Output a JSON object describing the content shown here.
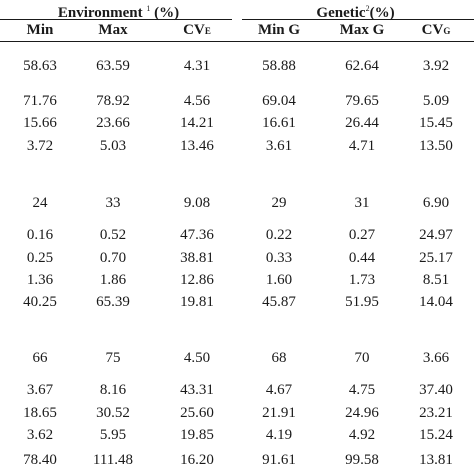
{
  "header": {
    "environment": {
      "label": "Environment",
      "note": "1",
      "suffix": "(%)"
    },
    "genetic": {
      "label": "Genetic",
      "note": "2",
      "suffix": "(%)"
    },
    "columns": [
      {
        "main": "Min",
        "sub": ""
      },
      {
        "main": "Max",
        "sub": ""
      },
      {
        "main": "CV",
        "sub": "E"
      },
      {
        "main": "Min G",
        "sub": ""
      },
      {
        "main": "Max G",
        "sub": ""
      },
      {
        "main": "CV",
        "sub": "G"
      }
    ]
  },
  "rows": [
    [
      "58.63",
      "63.59",
      "4.31",
      "58.88",
      "62.64",
      "3.92"
    ],
    [
      "71.76",
      "78.92",
      "4.56",
      "69.04",
      "79.65",
      "5.09"
    ],
    [
      "15.66",
      "23.66",
      "14.21",
      "16.61",
      "26.44",
      "15.45"
    ],
    [
      "3.72",
      "5.03",
      "13.46",
      "3.61",
      "4.71",
      "13.50"
    ],
    [
      "24",
      "33",
      "9.08",
      "29",
      "31",
      "6.90"
    ],
    [
      "0.16",
      "0.52",
      "47.36",
      "0.22",
      "0.27",
      "24.97"
    ],
    [
      "0.25",
      "0.70",
      "38.81",
      "0.33",
      "0.44",
      "25.17"
    ],
    [
      "1.36",
      "1.86",
      "12.86",
      "1.60",
      "1.73",
      "8.51"
    ],
    [
      "40.25",
      "65.39",
      "19.81",
      "45.87",
      "51.95",
      "14.04"
    ],
    [
      "66",
      "75",
      "4.50",
      "68",
      "70",
      "3.66"
    ],
    [
      "3.67",
      "8.16",
      "43.31",
      "4.67",
      "4.75",
      "37.40"
    ],
    [
      "18.65",
      "30.52",
      "25.60",
      "21.91",
      "24.96",
      "23.21"
    ],
    [
      "3.62",
      "5.95",
      "19.85",
      "4.19",
      "4.92",
      "15.24"
    ],
    [
      "78.40",
      "111.48",
      "16.20",
      "91.61",
      "99.58",
      "13.81"
    ]
  ]
}
